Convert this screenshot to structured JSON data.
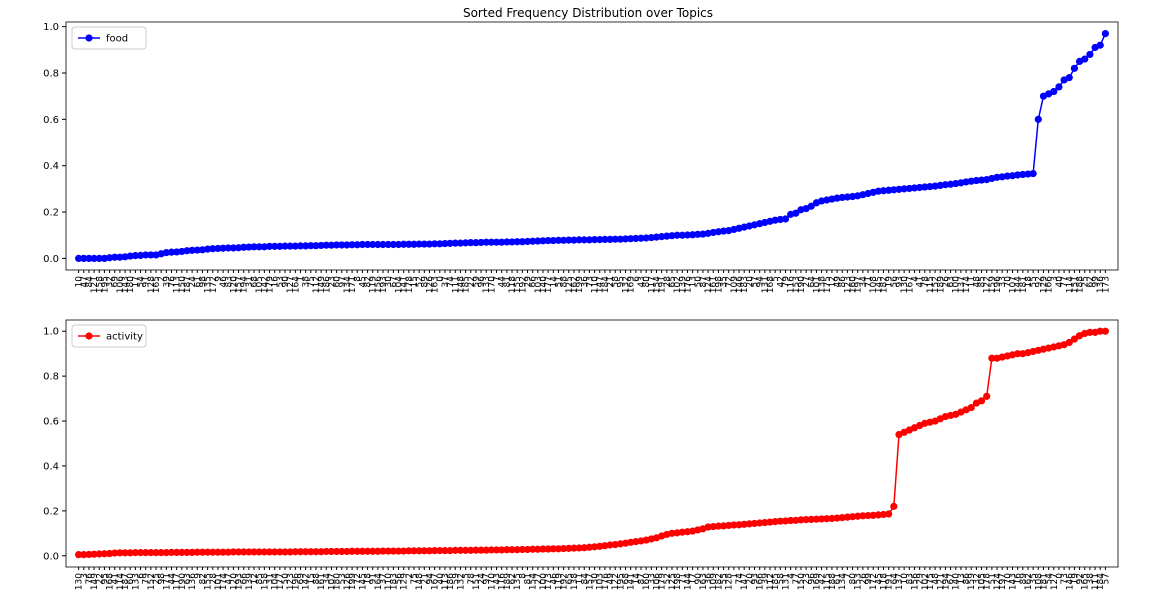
{
  "chart_data": [
    {
      "type": "line",
      "title": "Sorted Frequency Distribution over Topics",
      "legend": "upper left",
      "grid": false,
      "ylim": [
        -0.05,
        1.02
      ],
      "yticks": [
        {
          "value": 0,
          "label": "0.0"
        },
        {
          "value": 0.2,
          "label": "0.2"
        },
        {
          "value": 0.4,
          "label": "0.4"
        },
        {
          "value": 0.6,
          "label": "0.6"
        },
        {
          "value": 0.8,
          "label": "0.8"
        },
        {
          "value": 1.0,
          "label": "1.0"
        }
      ],
      "categories": [
        "10",
        "47",
        "84",
        "121",
        "158",
        "195",
        "32",
        "69",
        "106",
        "143",
        "180",
        "17",
        "54",
        "91",
        "128",
        "165",
        "2",
        "39",
        "76",
        "113",
        "150",
        "187",
        "24",
        "61",
        "98",
        "135",
        "172",
        "9",
        "46",
        "83",
        "120",
        "157",
        "194",
        "31",
        "68",
        "105",
        "142",
        "179",
        "16",
        "53",
        "90",
        "127",
        "164",
        "1",
        "38",
        "75",
        "112",
        "149",
        "186",
        "23",
        "60",
        "97",
        "134",
        "171",
        "8",
        "45",
        "82",
        "119",
        "156",
        "193",
        "30",
        "67",
        "104",
        "141",
        "178",
        "15",
        "52",
        "89",
        "126",
        "163",
        "0",
        "37",
        "74",
        "111",
        "148",
        "185",
        "22",
        "59",
        "96",
        "133",
        "170",
        "7",
        "44",
        "81",
        "118",
        "155",
        "192",
        "29",
        "66",
        "103",
        "140",
        "177",
        "14",
        "51",
        "88",
        "125",
        "162",
        "199",
        "36",
        "73",
        "110",
        "147",
        "184",
        "21",
        "58",
        "95",
        "132",
        "169",
        "6",
        "43",
        "80",
        "117",
        "154",
        "191",
        "28",
        "65",
        "102",
        "139",
        "176",
        "13",
        "50",
        "87",
        "124",
        "161",
        "198",
        "35",
        "72",
        "109",
        "146",
        "183",
        "20",
        "57",
        "94",
        "131",
        "168",
        "5",
        "42",
        "79",
        "116",
        "153",
        "190",
        "27",
        "64",
        "101",
        "138",
        "175",
        "12",
        "49",
        "86",
        "123",
        "160",
        "197",
        "34",
        "71",
        "108",
        "145",
        "182",
        "19",
        "56",
        "93",
        "130",
        "167",
        "4",
        "41",
        "78",
        "115",
        "152",
        "189",
        "26",
        "63",
        "100",
        "137",
        "174",
        "11",
        "48",
        "85",
        "122",
        "159",
        "196",
        "33",
        "70",
        "107",
        "144",
        "181",
        "18",
        "55",
        "92",
        "129",
        "166",
        "3",
        "40",
        "77",
        "114",
        "151",
        "188",
        "25",
        "62",
        "99",
        "136",
        "173"
      ],
      "series": [
        {
          "name": "food",
          "color": "#0000ff",
          "values": [
            0,
            0,
            0,
            0,
            0,
            0,
            0.003,
            0.005,
            0.005,
            0.007,
            0.01,
            0.012,
            0.013,
            0.015,
            0.015,
            0.015,
            0.02,
            0.025,
            0.027,
            0.028,
            0.03,
            0.033,
            0.035,
            0.036,
            0.037,
            0.04,
            0.042,
            0.043,
            0.044,
            0.045,
            0.045,
            0.046,
            0.048,
            0.049,
            0.05,
            0.05,
            0.05,
            0.052,
            0.052,
            0.052,
            0.053,
            0.053,
            0.053,
            0.054,
            0.054,
            0.055,
            0.055,
            0.056,
            0.057,
            0.057,
            0.058,
            0.058,
            0.058,
            0.059,
            0.059,
            0.06,
            0.06,
            0.06,
            0.06,
            0.06,
            0.06,
            0.06,
            0.06,
            0.061,
            0.061,
            0.061,
            0.062,
            0.062,
            0.062,
            0.063,
            0.063,
            0.064,
            0.065,
            0.066,
            0.066,
            0.067,
            0.068,
            0.068,
            0.069,
            0.07,
            0.07,
            0.07,
            0.07,
            0.071,
            0.071,
            0.072,
            0.072,
            0.073,
            0.074,
            0.075,
            0.076,
            0.077,
            0.077,
            0.078,
            0.078,
            0.079,
            0.079,
            0.08,
            0.08,
            0.08,
            0.081,
            0.081,
            0.082,
            0.082,
            0.083,
            0.083,
            0.084,
            0.085,
            0.086,
            0.087,
            0.088,
            0.09,
            0.092,
            0.094,
            0.096,
            0.098,
            0.1,
            0.1,
            0.101,
            0.102,
            0.104,
            0.105,
            0.108,
            0.112,
            0.115,
            0.118,
            0.12,
            0.125,
            0.13,
            0.135,
            0.14,
            0.145,
            0.15,
            0.155,
            0.16,
            0.165,
            0.168,
            0.17,
            0.19,
            0.195,
            0.21,
            0.215,
            0.225,
            0.24,
            0.248,
            0.252,
            0.256,
            0.26,
            0.263,
            0.265,
            0.267,
            0.27,
            0.275,
            0.28,
            0.285,
            0.29,
            0.292,
            0.294,
            0.296,
            0.298,
            0.3,
            0.302,
            0.304,
            0.306,
            0.308,
            0.31,
            0.312,
            0.315,
            0.318,
            0.32,
            0.323,
            0.326,
            0.33,
            0.333,
            0.336,
            0.338,
            0.34,
            0.345,
            0.35,
            0.352,
            0.355,
            0.357,
            0.36,
            0.362,
            0.364,
            0.366,
            0.6,
            0.7,
            0.71,
            0.72,
            0.74,
            0.77,
            0.78,
            0.82,
            0.85,
            0.86,
            0.88,
            0.91,
            0.92,
            0.97
          ]
        }
      ]
    },
    {
      "type": "line",
      "legend": "upper left",
      "grid": false,
      "ylim": [
        -0.05,
        1.05
      ],
      "yticks": [
        {
          "value": 0,
          "label": "0.0"
        },
        {
          "value": 0.2,
          "label": "0.2"
        },
        {
          "value": 0.4,
          "label": "0.4"
        },
        {
          "value": 0.6,
          "label": "0.6"
        },
        {
          "value": 0.8,
          "label": "0.8"
        },
        {
          "value": 1.0,
          "label": "1.0"
        }
      ],
      "categories": [
        "130",
        "3",
        "76",
        "149",
        "22",
        "95",
        "168",
        "41",
        "114",
        "187",
        "60",
        "133",
        "6",
        "79",
        "152",
        "25",
        "98",
        "171",
        "44",
        "117",
        "190",
        "63",
        "136",
        "9",
        "82",
        "155",
        "28",
        "101",
        "174",
        "47",
        "120",
        "193",
        "66",
        "139",
        "12",
        "85",
        "158",
        "31",
        "104",
        "177",
        "50",
        "123",
        "196",
        "69",
        "142",
        "15",
        "88",
        "161",
        "34",
        "107",
        "180",
        "53",
        "126",
        "199",
        "72",
        "145",
        "18",
        "91",
        "164",
        "37",
        "110",
        "183",
        "56",
        "129",
        "2",
        "75",
        "148",
        "21",
        "94",
        "167",
        "40",
        "113",
        "186",
        "59",
        "132",
        "5",
        "78",
        "151",
        "24",
        "97",
        "170",
        "43",
        "116",
        "189",
        "62",
        "135",
        "8",
        "81",
        "154",
        "27",
        "100",
        "173",
        "46",
        "119",
        "192",
        "65",
        "138",
        "11",
        "84",
        "157",
        "30",
        "103",
        "176",
        "49",
        "122",
        "195",
        "68",
        "141",
        "14",
        "87",
        "160",
        "33",
        "106",
        "179",
        "52",
        "125",
        "198",
        "71",
        "144",
        "17",
        "90",
        "163",
        "36",
        "109",
        "182",
        "55",
        "128",
        "1",
        "74",
        "147",
        "20",
        "93",
        "166",
        "39",
        "112",
        "185",
        "58",
        "131",
        "4",
        "77",
        "150",
        "23",
        "96",
        "169",
        "42",
        "115",
        "188",
        "61",
        "134",
        "7",
        "80",
        "153",
        "26",
        "99",
        "172",
        "45",
        "118",
        "191",
        "64",
        "137",
        "10",
        "83",
        "156",
        "29",
        "102",
        "175",
        "48",
        "121",
        "194",
        "67",
        "140",
        "13",
        "86",
        "159",
        "32",
        "105",
        "178",
        "51",
        "124",
        "197",
        "70",
        "143",
        "16",
        "89",
        "162",
        "35",
        "108",
        "181",
        "54",
        "127",
        "0",
        "73",
        "146",
        "19",
        "92",
        "165",
        "38",
        "111",
        "184",
        "57"
      ],
      "series": [
        {
          "name": "activity",
          "color": "#ff0000",
          "values": [
            0.005,
            0.005,
            0.006,
            0.007,
            0.008,
            0.009,
            0.01,
            0.012,
            0.013,
            0.013,
            0.013,
            0.014,
            0.014,
            0.014,
            0.014,
            0.014,
            0.014,
            0.014,
            0.015,
            0.015,
            0.015,
            0.015,
            0.015,
            0.016,
            0.016,
            0.016,
            0.016,
            0.016,
            0.016,
            0.016,
            0.017,
            0.017,
            0.017,
            0.017,
            0.017,
            0.017,
            0.017,
            0.017,
            0.017,
            0.017,
            0.017,
            0.017,
            0.018,
            0.018,
            0.018,
            0.018,
            0.018,
            0.018,
            0.019,
            0.019,
            0.019,
            0.019,
            0.019,
            0.02,
            0.02,
            0.02,
            0.02,
            0.02,
            0.02,
            0.021,
            0.021,
            0.021,
            0.021,
            0.021,
            0.022,
            0.022,
            0.022,
            0.022,
            0.022,
            0.023,
            0.023,
            0.023,
            0.023,
            0.024,
            0.024,
            0.024,
            0.024,
            0.025,
            0.025,
            0.025,
            0.026,
            0.026,
            0.026,
            0.027,
            0.027,
            0.027,
            0.028,
            0.028,
            0.029,
            0.029,
            0.03,
            0.03,
            0.031,
            0.031,
            0.032,
            0.033,
            0.034,
            0.035,
            0.036,
            0.038,
            0.04,
            0.042,
            0.045,
            0.048,
            0.05,
            0.053,
            0.056,
            0.06,
            0.063,
            0.066,
            0.07,
            0.075,
            0.08,
            0.088,
            0.095,
            0.1,
            0.102,
            0.105,
            0.107,
            0.11,
            0.115,
            0.12,
            0.128,
            0.13,
            0.132,
            0.133,
            0.135,
            0.137,
            0.138,
            0.14,
            0.142,
            0.144,
            0.146,
            0.148,
            0.15,
            0.152,
            0.154,
            0.155,
            0.157,
            0.158,
            0.16,
            0.161,
            0.162,
            0.163,
            0.164,
            0.165,
            0.166,
            0.168,
            0.17,
            0.172,
            0.174,
            0.176,
            0.178,
            0.179,
            0.18,
            0.182,
            0.184,
            0.186,
            0.22,
            0.54,
            0.55,
            0.56,
            0.57,
            0.58,
            0.59,
            0.595,
            0.6,
            0.61,
            0.62,
            0.625,
            0.63,
            0.64,
            0.65,
            0.66,
            0.68,
            0.69,
            0.71,
            0.88,
            0.88,
            0.885,
            0.89,
            0.895,
            0.9,
            0.9,
            0.905,
            0.91,
            0.915,
            0.92,
            0.925,
            0.93,
            0.935,
            0.94,
            0.95,
            0.965,
            0.98,
            0.99,
            0.995,
            0.995,
            1.0,
            1.0
          ]
        }
      ]
    }
  ]
}
